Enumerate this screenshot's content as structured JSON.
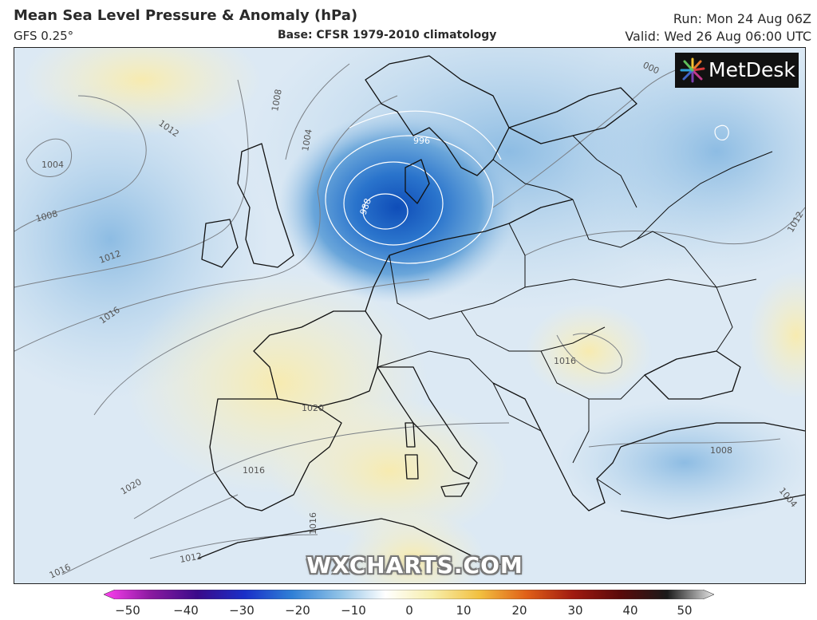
{
  "header": {
    "title": "Mean Sea Level Pressure & Anomaly (hPa)",
    "model": "GFS 0.25°",
    "base": "Base: CFSR 1979-2010 climatology",
    "run": "Run: Mon 24 Aug 06Z",
    "valid": "Valid: Wed 26 Aug 06:00 UTC"
  },
  "logo": {
    "text": "MetDesk",
    "icon": "starburst-logo-icon"
  },
  "watermark": "WXCHARTS.COM",
  "isobar_labels": [
    "1012",
    "1008",
    "1004",
    "996",
    "988",
    "1004",
    "1008",
    "1012",
    "1016",
    "1020",
    "1016",
    "1020",
    "1016",
    "1016",
    "1012",
    "1016",
    "1008",
    "1004",
    "1012",
    "000"
  ],
  "colorbar": {
    "ticks": [
      "−50",
      "−40",
      "−30",
      "−20",
      "−10",
      "0",
      "10",
      "20",
      "30",
      "40",
      "50"
    ],
    "min": -50,
    "max": 50,
    "colors": [
      "#ff3ff0",
      "#8a1aa0",
      "#3a0a8a",
      "#1a2fc8",
      "#2f7fd6",
      "#8cc0e6",
      "#ffffff",
      "#f7eeaa",
      "#f2c040",
      "#e06018",
      "#a01a10",
      "#5a0a0a",
      "#1a1a1a",
      "#e6e6e6"
    ]
  }
}
